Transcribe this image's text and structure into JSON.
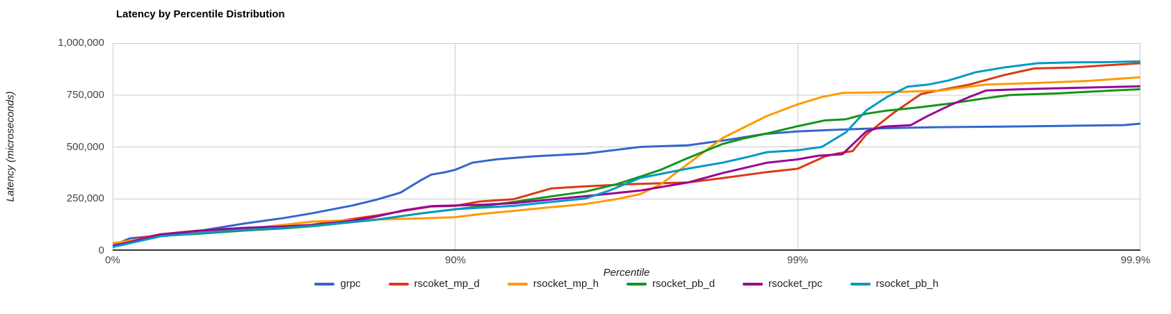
{
  "chart_data": {
    "type": "line",
    "title": "Latency by Percentile Distribution",
    "xlabel": "Percentile",
    "ylabel": "Latency (microseconds)",
    "x_scale": "log-percentile, position = log10(1/(1-p))",
    "x_tick_labels": [
      "0%",
      "90%",
      "99%",
      "99.9%"
    ],
    "x_ticks_log_units": [
      0,
      1,
      2,
      3
    ],
    "y_tick_labels": [
      "0",
      "250,000",
      "500,000",
      "750,000",
      "1,000,000"
    ],
    "y_ticks": [
      0,
      250000,
      500000,
      750000,
      1000000
    ],
    "ylim": [
      0,
      1000000
    ],
    "xlim_log_units": [
      0,
      3
    ],
    "grid": true,
    "legend_position": "bottom",
    "axis_color": "#333333",
    "gridline_color": "#cccccc",
    "series": [
      {
        "name": "grpc",
        "color": "#3366cc",
        "points": [
          [
            0,
            25000
          ],
          [
            0.05,
            60000
          ],
          [
            0.1,
            68000
          ],
          [
            0.14,
            75000
          ],
          [
            0.25,
            95000
          ],
          [
            0.38,
            130000
          ],
          [
            0.5,
            158000
          ],
          [
            0.58,
            180000
          ],
          [
            0.7,
            218000
          ],
          [
            0.77,
            246000
          ],
          [
            0.84,
            280000
          ],
          [
            0.9,
            340000
          ],
          [
            0.93,
            367000
          ],
          [
            0.97,
            378000
          ],
          [
            1,
            390000
          ],
          [
            1.05,
            424000
          ],
          [
            1.12,
            440000
          ],
          [
            1.23,
            455000
          ],
          [
            1.38,
            468000
          ],
          [
            1.54,
            500000
          ],
          [
            1.68,
            508000
          ],
          [
            1.8,
            535000
          ],
          [
            1.9,
            562000
          ],
          [
            2,
            575000
          ],
          [
            2.1,
            582000
          ],
          [
            2.2,
            588000
          ],
          [
            2.4,
            595000
          ],
          [
            2.6,
            598000
          ],
          [
            2.8,
            602000
          ],
          [
            2.95,
            605000
          ],
          [
            3,
            612000
          ]
        ]
      },
      {
        "name": "rscoket_mp_d",
        "color": "#dc3912",
        "points": [
          [
            0,
            22000
          ],
          [
            0.08,
            60000
          ],
          [
            0.14,
            80000
          ],
          [
            0.25,
            97000
          ],
          [
            0.38,
            110000
          ],
          [
            0.5,
            118000
          ],
          [
            0.58,
            125000
          ],
          [
            0.77,
            170000
          ],
          [
            0.88,
            200000
          ],
          [
            0.93,
            213000
          ],
          [
            1,
            216000
          ],
          [
            1.07,
            237000
          ],
          [
            1.17,
            248000
          ],
          [
            1.28,
            300000
          ],
          [
            1.38,
            310000
          ],
          [
            1.5,
            320000
          ],
          [
            1.68,
            329000
          ],
          [
            1.78,
            350000
          ],
          [
            1.91,
            379000
          ],
          [
            2,
            395000
          ],
          [
            2.08,
            455000
          ],
          [
            2.12,
            470000
          ],
          [
            2.16,
            480000
          ],
          [
            2.2,
            560000
          ],
          [
            2.28,
            665000
          ],
          [
            2.36,
            755000
          ],
          [
            2.42,
            775000
          ],
          [
            2.5,
            800000
          ],
          [
            2.6,
            845000
          ],
          [
            2.69,
            878000
          ],
          [
            2.8,
            882000
          ],
          [
            2.9,
            893000
          ],
          [
            3,
            903000
          ]
        ]
      },
      {
        "name": "rsocket_mp_h",
        "color": "#ff9900",
        "points": [
          [
            0,
            37000
          ],
          [
            0.08,
            55000
          ],
          [
            0.14,
            70000
          ],
          [
            0.25,
            88000
          ],
          [
            0.38,
            105000
          ],
          [
            0.5,
            125000
          ],
          [
            0.58,
            140000
          ],
          [
            0.7,
            148000
          ],
          [
            0.8,
            152000
          ],
          [
            0.9,
            156000
          ],
          [
            1,
            162000
          ],
          [
            1.08,
            178000
          ],
          [
            1.17,
            192000
          ],
          [
            1.28,
            210000
          ],
          [
            1.38,
            225000
          ],
          [
            1.47,
            248000
          ],
          [
            1.54,
            273000
          ],
          [
            1.6,
            320000
          ],
          [
            1.68,
            419000
          ],
          [
            1.78,
            542000
          ],
          [
            1.85,
            600000
          ],
          [
            1.91,
            649000
          ],
          [
            2,
            705000
          ],
          [
            2.07,
            740000
          ],
          [
            2.13,
            760000
          ],
          [
            2.2,
            762000
          ],
          [
            2.3,
            765000
          ],
          [
            2.42,
            772000
          ],
          [
            2.5,
            790000
          ],
          [
            2.55,
            800000
          ],
          [
            2.7,
            808000
          ],
          [
            2.85,
            818000
          ],
          [
            3,
            835000
          ]
        ]
      },
      {
        "name": "rsocket_pb_d",
        "color": "#109618",
        "points": [
          [
            0,
            20000
          ],
          [
            0.14,
            72000
          ],
          [
            0.25,
            82000
          ],
          [
            0.38,
            97000
          ],
          [
            0.5,
            108000
          ],
          [
            0.58,
            118000
          ],
          [
            0.77,
            150000
          ],
          [
            0.9,
            180000
          ],
          [
            1,
            200000
          ],
          [
            1.08,
            215000
          ],
          [
            1.17,
            235000
          ],
          [
            1.28,
            262000
          ],
          [
            1.38,
            285000
          ],
          [
            1.47,
            320000
          ],
          [
            1.54,
            357000
          ],
          [
            1.6,
            390000
          ],
          [
            1.68,
            447000
          ],
          [
            1.78,
            514000
          ],
          [
            1.84,
            540000
          ],
          [
            1.91,
            565000
          ],
          [
            2,
            600000
          ],
          [
            2.08,
            628000
          ],
          [
            2.14,
            633000
          ],
          [
            2.2,
            660000
          ],
          [
            2.26,
            675000
          ],
          [
            2.35,
            690000
          ],
          [
            2.45,
            710000
          ],
          [
            2.55,
            735000
          ],
          [
            2.62,
            750000
          ],
          [
            2.76,
            758000
          ],
          [
            2.9,
            770000
          ],
          [
            3,
            778000
          ]
        ]
      },
      {
        "name": "rsocket_rpc",
        "color": "#990099",
        "points": [
          [
            0,
            22000
          ],
          [
            0.14,
            78000
          ],
          [
            0.25,
            96000
          ],
          [
            0.38,
            110000
          ],
          [
            0.5,
            117000
          ],
          [
            0.58,
            123000
          ],
          [
            0.7,
            145000
          ],
          [
            0.77,
            165000
          ],
          [
            0.85,
            195000
          ],
          [
            0.93,
            215000
          ],
          [
            1,
            218000
          ],
          [
            1.08,
            222000
          ],
          [
            1.17,
            229000
          ],
          [
            1.28,
            247000
          ],
          [
            1.38,
            263000
          ],
          [
            1.54,
            290000
          ],
          [
            1.68,
            329000
          ],
          [
            1.78,
            374000
          ],
          [
            1.91,
            424000
          ],
          [
            2,
            440000
          ],
          [
            2.06,
            458000
          ],
          [
            2.13,
            465000
          ],
          [
            2.2,
            575000
          ],
          [
            2.25,
            598000
          ],
          [
            2.33,
            605000
          ],
          [
            2.38,
            650000
          ],
          [
            2.45,
            705000
          ],
          [
            2.5,
            740000
          ],
          [
            2.55,
            772000
          ],
          [
            2.62,
            776000
          ],
          [
            2.7,
            780000
          ],
          [
            2.85,
            786000
          ],
          [
            3,
            792000
          ]
        ]
      },
      {
        "name": "rsocket_pb_h",
        "color": "#0099c6",
        "points": [
          [
            0,
            18000
          ],
          [
            0.14,
            70000
          ],
          [
            0.25,
            85000
          ],
          [
            0.38,
            100000
          ],
          [
            0.5,
            110000
          ],
          [
            0.58,
            120000
          ],
          [
            0.77,
            150000
          ],
          [
            0.9,
            180000
          ],
          [
            1,
            200000
          ],
          [
            1.08,
            208000
          ],
          [
            1.17,
            216000
          ],
          [
            1.28,
            235000
          ],
          [
            1.38,
            252000
          ],
          [
            1.45,
            290000
          ],
          [
            1.54,
            351000
          ],
          [
            1.6,
            370000
          ],
          [
            1.68,
            396000
          ],
          [
            1.78,
            424000
          ],
          [
            1.85,
            450000
          ],
          [
            1.91,
            475000
          ],
          [
            2,
            484000
          ],
          [
            2.07,
            500000
          ],
          [
            2.14,
            570000
          ],
          [
            2.2,
            676000
          ],
          [
            2.26,
            740000
          ],
          [
            2.32,
            790000
          ],
          [
            2.38,
            800000
          ],
          [
            2.44,
            820000
          ],
          [
            2.52,
            860000
          ],
          [
            2.6,
            882000
          ],
          [
            2.7,
            903000
          ],
          [
            2.8,
            907000
          ],
          [
            2.9,
            908000
          ],
          [
            3,
            912000
          ]
        ]
      }
    ]
  }
}
